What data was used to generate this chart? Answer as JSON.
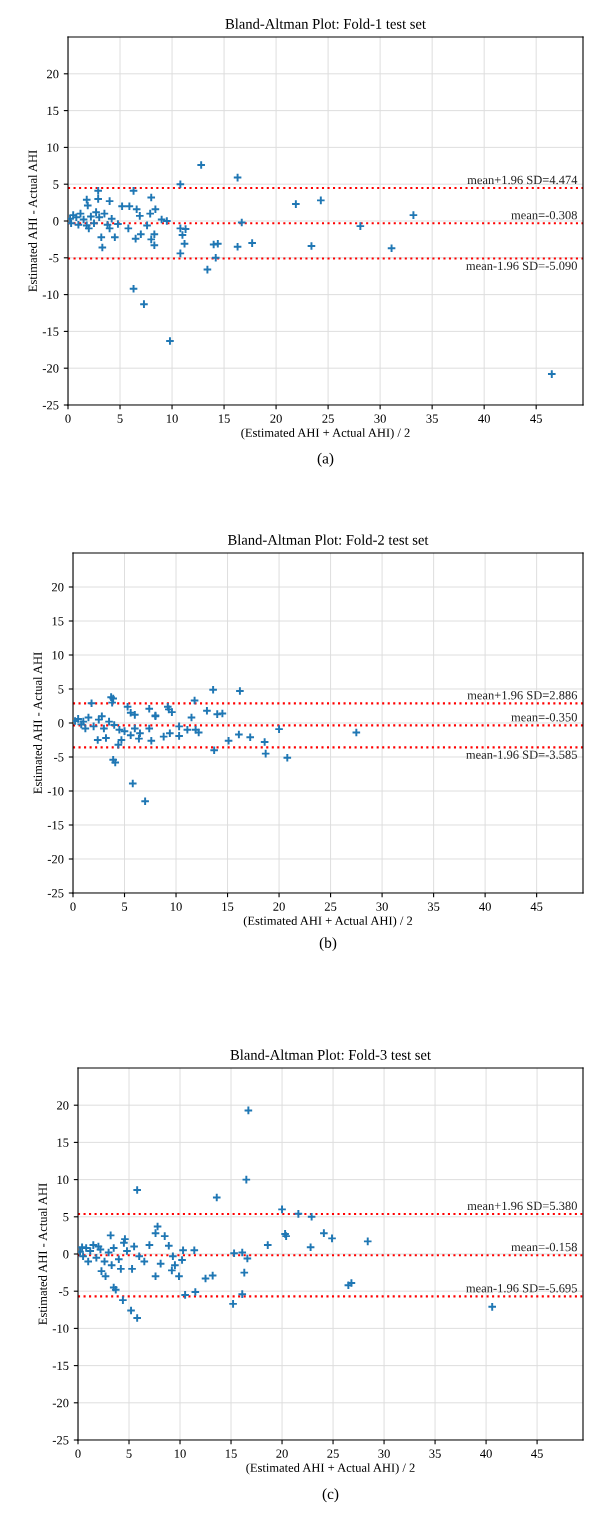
{
  "chart_data": [
    {
      "type": "scatter",
      "title": "Bland-Altman Plot: Fold-1 test set",
      "xlabel": "(Estimated AHI + Actual AHI) / 2",
      "ylabel": "Estimated AHI - Actual AHI",
      "annotations": [
        "(a)"
      ],
      "xlim": [
        0,
        49.5
      ],
      "ylim": [
        -25,
        25
      ],
      "xticks": [
        0,
        5,
        10,
        15,
        20,
        25,
        30,
        35,
        40,
        45
      ],
      "yticks": [
        -25,
        -20,
        -15,
        -10,
        -5,
        0,
        5,
        10,
        15,
        20
      ],
      "grid": true,
      "marker": "cross",
      "series": [
        {
          "color": "#1f77b4",
          "x": [
            12.8,
            16.3,
            10.8,
            2.9,
            6.3,
            8.0,
            2.9,
            4.0,
            1.8,
            21.9,
            24.3,
            5.2,
            5.9,
            6.6,
            8.4,
            1.9,
            33.2,
            16.7,
            28.1,
            9.5,
            9.0,
            10.8,
            11.3,
            11.0,
            11.2,
            10.8,
            14.0,
            14.4,
            16.3,
            17.7,
            23.4,
            31.1,
            14.2,
            13.4,
            6.3,
            7.3,
            9.8,
            46.5,
            3.3,
            3.2,
            4.5,
            6.5,
            8.3,
            8.0,
            8.3,
            7.0,
            5.8,
            4.0,
            2.0,
            1.0,
            0.2,
            0.5,
            0.8,
            1.2,
            1.5,
            2.2,
            2.5,
            3.0,
            3.5,
            4.2,
            4.8,
            0.3,
            1.8,
            2.7,
            3.8,
            7.6,
            6.9,
            7.9
          ],
          "values": [
            7.6,
            5.9,
            5.0,
            4.1,
            4.1,
            3.2,
            3.0,
            2.7,
            2.9,
            2.3,
            2.8,
            2.0,
            2.0,
            1.6,
            1.6,
            2.1,
            0.8,
            -0.2,
            -0.7,
            0.0,
            0.2,
            -1.0,
            -1.1,
            -1.9,
            -3.1,
            -4.4,
            -3.2,
            -3.1,
            -3.5,
            -3.0,
            -3.4,
            -3.7,
            -5.0,
            -6.6,
            -9.2,
            -11.3,
            -16.3,
            -20.8,
            -3.6,
            -2.2,
            -2.2,
            -2.4,
            -3.3,
            -2.5,
            -1.8,
            -1.8,
            -1.0,
            -1.0,
            -1.0,
            -0.5,
            0.3,
            0.8,
            0.5,
            1.0,
            0.2,
            0.6,
            -0.3,
            0.5,
            1.0,
            0.3,
            -0.4,
            -0.3,
            -0.6,
            1.2,
            -0.5,
            -0.6,
            0.7,
            1.0
          ]
        }
      ],
      "ref_lines": [
        {
          "axis": "y",
          "value": 4.474,
          "label": "mean+1.96 SD=4.474",
          "color": "#ff0000",
          "line_style": "dotted"
        },
        {
          "axis": "y",
          "value": -0.308,
          "label": "mean=-0.308",
          "color": "#ff0000",
          "line_style": "dotted"
        },
        {
          "axis": "y",
          "value": -5.09,
          "label": "mean-1.96 SD=-5.090",
          "color": "#ff0000",
          "line_style": "dotted"
        }
      ]
    },
    {
      "type": "scatter",
      "title": "Bland-Altman Plot: Fold-2 test set",
      "xlabel": "(Estimated AHI + Actual AHI) / 2",
      "ylabel": "Estimated AHI - Actual AHI",
      "annotations": [
        "(b)"
      ],
      "xlim": [
        0,
        49.5
      ],
      "ylim": [
        -25,
        25
      ],
      "xticks": [
        0,
        5,
        10,
        15,
        20,
        25,
        30,
        35,
        40,
        45
      ],
      "yticks": [
        -25,
        -20,
        -15,
        -10,
        -5,
        0,
        5,
        10,
        15,
        20
      ],
      "grid": true,
      "marker": "cross",
      "series": [
        {
          "color": "#1f77b4",
          "x": [
            13.6,
            16.2,
            3.7,
            3.9,
            1.8,
            11.8,
            3.8,
            5.3,
            7.4,
            9.2,
            9.3,
            9.6,
            13.0,
            14.0,
            14.5,
            8.0,
            11.5,
            5.6,
            6.0,
            10.3,
            20.0,
            11.1,
            11.9,
            12.2,
            9.4,
            10.3,
            8.8,
            16.1,
            17.2,
            27.5,
            15.1,
            7.6,
            18.6,
            13.7,
            18.7,
            20.8,
            4.4,
            4.7,
            3.9,
            4.1,
            5.8,
            7.0,
            6.4,
            5.6,
            2.4,
            3.2,
            0.2,
            0.5,
            1.0,
            1.5,
            2.0,
            2.5,
            3.0,
            3.5,
            4.0,
            1.2,
            0.8,
            2.8,
            4.5,
            5.0,
            6.0,
            6.5,
            7.4,
            8.0
          ],
          "values": [
            4.9,
            4.7,
            3.8,
            3.6,
            2.9,
            3.3,
            3.0,
            2.4,
            2.1,
            2.4,
            2.0,
            1.6,
            1.8,
            1.3,
            1.4,
            1.0,
            0.8,
            1.5,
            1.2,
            -0.5,
            -0.9,
            -1.0,
            -1.0,
            -1.4,
            -1.5,
            -1.9,
            -2.0,
            -1.7,
            -2.1,
            -1.4,
            -2.6,
            -2.6,
            -2.8,
            -4.0,
            -4.5,
            -5.1,
            -3.2,
            -2.5,
            -5.4,
            -5.8,
            -8.9,
            -11.5,
            -2.3,
            -1.8,
            -2.5,
            -2.2,
            0.3,
            0.6,
            0.2,
            0.8,
            -0.5,
            0.5,
            -0.8,
            0.2,
            -0.3,
            -0.8,
            -0.2,
            1.0,
            -1.0,
            -1.2,
            -0.8,
            -1.5,
            -0.8,
            1.1
          ]
        }
      ],
      "ref_lines": [
        {
          "axis": "y",
          "value": 2.886,
          "label": "mean+1.96 SD=2.886",
          "color": "#ff0000",
          "line_style": "dotted"
        },
        {
          "axis": "y",
          "value": -0.35,
          "label": "mean=-0.350",
          "color": "#ff0000",
          "line_style": "dotted"
        },
        {
          "axis": "y",
          "value": -3.585,
          "label": "mean-1.96 SD=-3.585",
          "color": "#ff0000",
          "line_style": "dotted"
        }
      ]
    },
    {
      "type": "scatter",
      "title": "Bland-Altman Plot: Fold-3 test set",
      "xlabel": "(Estimated AHI + Actual AHI) / 2",
      "ylabel": "Estimated AHI - Actual AHI",
      "annotations": [
        "(c)"
      ],
      "xlim": [
        0,
        49.5
      ],
      "ylim": [
        -25,
        25
      ],
      "xticks": [
        0,
        5,
        10,
        15,
        20,
        25,
        30,
        35,
        40,
        45
      ],
      "yticks": [
        -25,
        -20,
        -15,
        -10,
        -5,
        0,
        5,
        10,
        15,
        20
      ],
      "grid": true,
      "marker": "cross",
      "series": [
        {
          "color": "#1f77b4",
          "x": [
            16.7,
            16.5,
            5.8,
            13.6,
            20.0,
            21.6,
            22.9,
            7.8,
            7.6,
            8.5,
            3.2,
            4.6,
            4.5,
            20.3,
            20.4,
            24.1,
            24.9,
            28.4,
            18.6,
            22.8,
            8.9,
            10.3,
            11.4,
            15.3,
            16.1,
            16.6,
            9.3,
            10.2,
            9.5,
            9.2,
            8.1,
            9.9,
            7.6,
            12.5,
            13.2,
            16.3,
            26.5,
            26.8,
            10.5,
            11.5,
            16.1,
            15.2,
            3.5,
            3.7,
            4.4,
            5.2,
            5.8,
            40.6,
            2.7,
            2.3,
            4.2,
            5.3,
            6.5,
            7.0,
            5.5,
            0.2,
            0.5,
            0.8,
            1.2,
            1.5,
            1.8,
            2.2,
            2.6,
            3.0,
            3.5,
            4.0,
            0.4,
            1.0,
            2.0,
            6.0,
            3.3,
            4.8
          ],
          "values": [
            19.3,
            10.0,
            8.6,
            7.6,
            6.0,
            5.4,
            5.0,
            3.7,
            2.8,
            2.4,
            2.5,
            2.0,
            1.5,
            2.7,
            2.4,
            2.8,
            2.1,
            1.7,
            1.2,
            0.9,
            1.1,
            0.5,
            0.5,
            0.1,
            0.2,
            -0.6,
            -0.3,
            -0.8,
            -1.5,
            -2.2,
            -1.3,
            -3.0,
            -3.0,
            -3.3,
            -2.9,
            -2.5,
            -4.2,
            -3.9,
            -5.5,
            -5.1,
            -5.4,
            -6.7,
            -4.5,
            -4.8,
            -6.2,
            -7.6,
            -8.6,
            -7.1,
            -3.0,
            -2.3,
            -2.0,
            -2.0,
            -1.0,
            1.2,
            1.0,
            0.3,
            -0.3,
            0.8,
            0.4,
            1.2,
            -0.5,
            0.6,
            -1.0,
            0.2,
            0.8,
            -0.7,
            0.9,
            -1.0,
            1.0,
            -0.3,
            -1.5,
            0.4
          ]
        }
      ],
      "ref_lines": [
        {
          "axis": "y",
          "value": 5.38,
          "label": "mean+1.96 SD=5.380",
          "color": "#ff0000",
          "line_style": "dotted"
        },
        {
          "axis": "y",
          "value": -0.158,
          "label": "mean=-0.158",
          "color": "#ff0000",
          "line_style": "dotted"
        },
        {
          "axis": "y",
          "value": -5.695,
          "label": "mean-1.96 SD=-5.695",
          "color": "#ff0000",
          "line_style": "dotted"
        }
      ]
    }
  ]
}
